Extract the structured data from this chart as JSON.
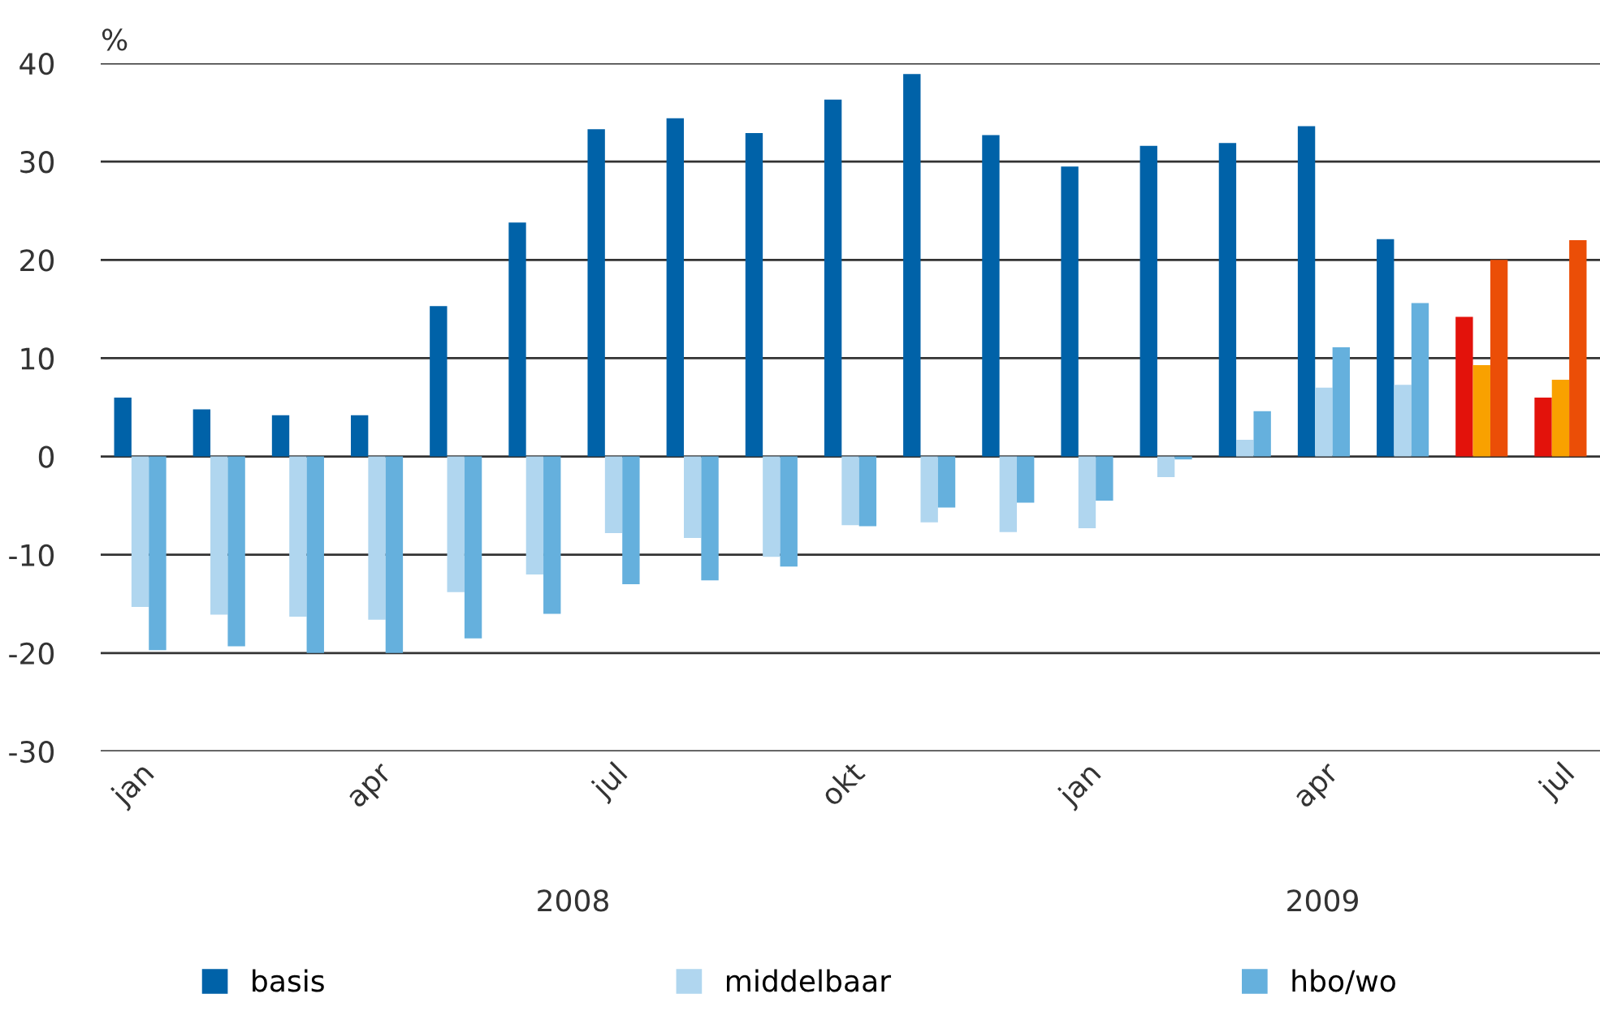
{
  "chart_data": {
    "type": "bar",
    "ylabel": "%",
    "categories": [
      "jan",
      null,
      null,
      "apr",
      null,
      null,
      "jul",
      null,
      null,
      "okt",
      null,
      null,
      "jan",
      null,
      null,
      "apr",
      null,
      null,
      "jul"
    ],
    "series": [
      {
        "name": "basis",
        "color": "#0062a8",
        "colors": [
          "#0062a8",
          "#0062a8",
          "#0062a8",
          "#0062a8",
          "#0062a8",
          "#0062a8",
          "#0062a8",
          "#0062a8",
          "#0062a8",
          "#0062a8",
          "#0062a8",
          "#0062a8",
          "#0062a8",
          "#0062a8",
          "#0062a8",
          "#0062a8",
          "#0062a8",
          "#e3120b",
          "#e3120b"
        ],
        "values": [
          6,
          4.8,
          4.2,
          4.2,
          15.3,
          23.8,
          33.3,
          34.4,
          32.9,
          36.3,
          38.9,
          32.7,
          29.5,
          31.6,
          31.9,
          33.6,
          22.1,
          14.2,
          6.0
        ]
      },
      {
        "name": "middelbaar",
        "color": "#b0d6ef",
        "colors": [
          "#b0d6ef",
          "#b0d6ef",
          "#b0d6ef",
          "#b0d6ef",
          "#b0d6ef",
          "#b0d6ef",
          "#b0d6ef",
          "#b0d6ef",
          "#b0d6ef",
          "#b0d6ef",
          "#b0d6ef",
          "#b0d6ef",
          "#b0d6ef",
          "#b0d6ef",
          "#b0d6ef",
          "#b0d6ef",
          "#b0d6ef",
          "#f9a100",
          "#f9a100"
        ],
        "values": [
          -15.3,
          -16.1,
          -16.3,
          -16.6,
          -13.8,
          -12,
          -7.8,
          -8.3,
          -10.2,
          -7,
          -6.7,
          -7.7,
          -7.3,
          -2.1,
          1.7,
          7,
          7.3,
          9.3,
          7.8
        ]
      },
      {
        "name": "hbo/wo",
        "color": "#65b0dd",
        "colors": [
          "#65b0dd",
          "#65b0dd",
          "#65b0dd",
          "#65b0dd",
          "#65b0dd",
          "#65b0dd",
          "#65b0dd",
          "#65b0dd",
          "#65b0dd",
          "#65b0dd",
          "#65b0dd",
          "#65b0dd",
          "#65b0dd",
          "#65b0dd",
          "#65b0dd",
          "#65b0dd",
          "#65b0dd",
          "#eb4e07",
          "#eb4e07"
        ],
        "values": [
          -19.7,
          -19.3,
          -20,
          -20,
          -18.5,
          -16,
          -13,
          -12.6,
          -11.2,
          -7.1,
          -5.2,
          -4.7,
          -4.5,
          -0.3,
          4.6,
          11.1,
          15.6,
          20,
          22
        ]
      }
    ],
    "ylim": [
      -30,
      40
    ],
    "yticks": [
      -30,
      -20,
      -10,
      0,
      10,
      20,
      30,
      40
    ],
    "grid": "y",
    "legend": "bottom",
    "annotations": [
      "2008",
      "2009"
    ]
  }
}
